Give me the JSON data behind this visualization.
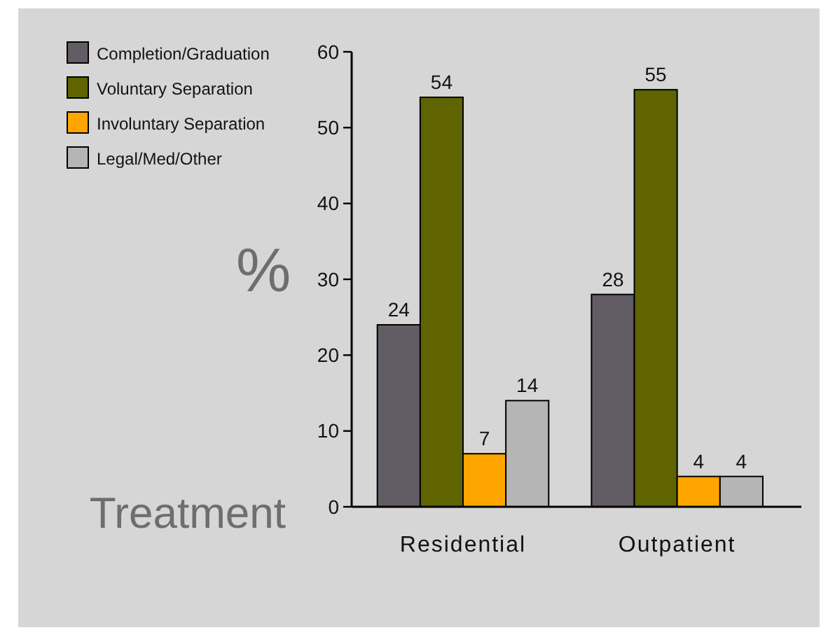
{
  "chart_data": {
    "type": "bar",
    "xlabel": "Treatment",
    "ylabel": "%",
    "categories": [
      "Residential",
      "Outpatient"
    ],
    "series": [
      {
        "name": "Completion/Graduation",
        "color": "#625d65",
        "values": [
          24,
          28
        ]
      },
      {
        "name": "Voluntary Separation",
        "color": "#5f6400",
        "values": [
          54,
          55
        ]
      },
      {
        "name": "Involuntary Separation",
        "color": "#ffa500",
        "values": [
          7,
          4
        ]
      },
      {
        "name": "Legal/Med/Other",
        "color": "#b5b5b5",
        "values": [
          14,
          4
        ]
      }
    ],
    "ylim": [
      0,
      60
    ],
    "yticks": [
      0,
      10,
      20,
      30,
      40,
      50,
      60
    ],
    "data_labels": true,
    "legend": "top left"
  }
}
